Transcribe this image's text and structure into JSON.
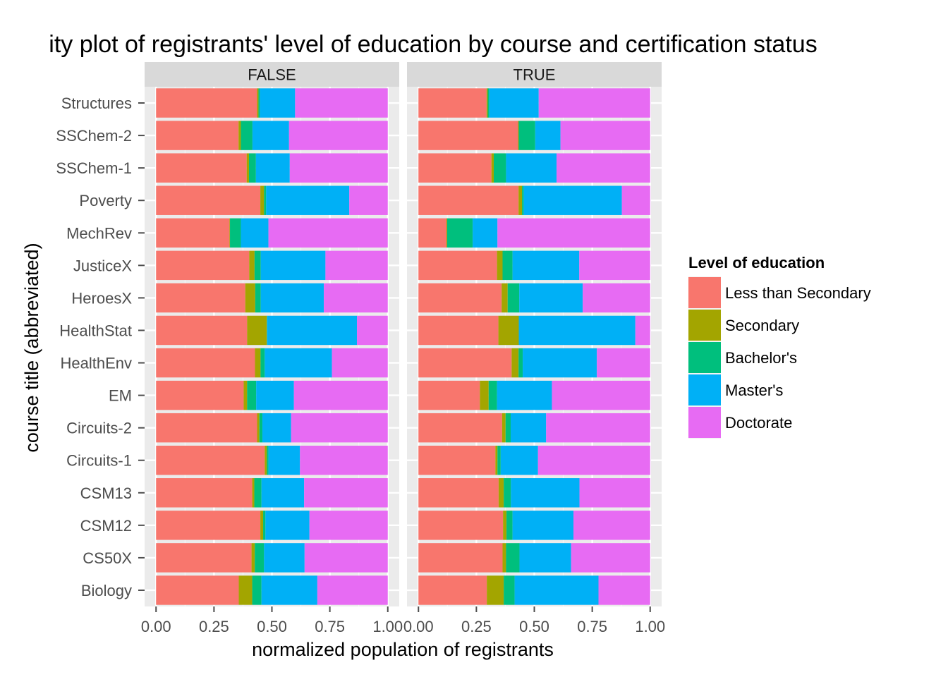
{
  "chart_data": {
    "type": "bar",
    "orientation": "horizontal",
    "stacked": true,
    "title": "ity plot of registrants' level of education by course and certification status",
    "xlabel": "normalized population of registrants",
    "ylabel": "course title (abbreviated)",
    "xlim": [
      0,
      1
    ],
    "xticks": [
      "0.00",
      "0.25",
      "0.50",
      "0.75",
      "1.00"
    ],
    "grid": true,
    "legend": {
      "position": "right",
      "title": "Level of education",
      "entries": [
        "Less than Secondary",
        "Secondary",
        "Bachelor's",
        "Master's",
        "Doctorate"
      ]
    },
    "colors": {
      "Less than Secondary": "#F8766D",
      "Secondary": "#A3A500",
      "Bachelor's": "#00BF7D",
      "Master's": "#00B0F6",
      "Doctorate": "#E76BF3"
    },
    "categories": [
      "Structures",
      "SSChem-2",
      "SSChem-1",
      "Poverty",
      "MechRev",
      "JusticeX",
      "HeroesX",
      "HealthStat",
      "HealthEnv",
      "EM",
      "Circuits-2",
      "Circuits-1",
      "CSM13",
      "CSM12",
      "CS50X",
      "Biology"
    ],
    "panels": [
      {
        "label": "FALSE",
        "series": [
          {
            "name": "Less than Secondary",
            "values": [
              0.436,
              0.356,
              0.391,
              0.45,
              0.317,
              0.402,
              0.385,
              0.393,
              0.427,
              0.378,
              0.436,
              0.469,
              0.415,
              0.45,
              0.412,
              0.357
            ]
          },
          {
            "name": "Secondary",
            "values": [
              0.006,
              0.01,
              0.01,
              0.016,
              0.002,
              0.023,
              0.043,
              0.085,
              0.024,
              0.015,
              0.01,
              0.009,
              0.009,
              0.012,
              0.014,
              0.058
            ]
          },
          {
            "name": "Bachelor's",
            "values": [
              0.006,
              0.05,
              0.03,
              0.009,
              0.047,
              0.027,
              0.024,
              0.001,
              0.018,
              0.039,
              0.013,
              0.007,
              0.031,
              0.01,
              0.04,
              0.04
            ]
          },
          {
            "name": "Master's",
            "values": [
              0.152,
              0.158,
              0.146,
              0.359,
              0.119,
              0.279,
              0.272,
              0.388,
              0.29,
              0.163,
              0.124,
              0.136,
              0.184,
              0.19,
              0.175,
              0.241
            ]
          },
          {
            "name": "Doctorate",
            "values": [
              0.4,
              0.426,
              0.423,
              0.166,
              0.515,
              0.269,
              0.276,
              0.133,
              0.241,
              0.405,
              0.417,
              0.379,
              0.361,
              0.338,
              0.359,
              0.304
            ]
          }
        ]
      },
      {
        "label": "TRUE",
        "series": [
          {
            "name": "Less than Secondary",
            "values": [
              0.294,
              0.43,
              0.315,
              0.432,
              0.121,
              0.339,
              0.359,
              0.345,
              0.402,
              0.265,
              0.361,
              0.332,
              0.346,
              0.365,
              0.363,
              0.295
            ]
          },
          {
            "name": "Secondary",
            "values": [
              0.005,
              0.003,
              0.01,
              0.015,
              0.003,
              0.024,
              0.026,
              0.088,
              0.03,
              0.038,
              0.015,
              0.009,
              0.022,
              0.015,
              0.015,
              0.073
            ]
          },
          {
            "name": "Bachelor's",
            "values": [
              0.007,
              0.071,
              0.053,
              0.007,
              0.11,
              0.043,
              0.05,
              0.0,
              0.018,
              0.036,
              0.022,
              0.014,
              0.031,
              0.026,
              0.058,
              0.047
            ]
          },
          {
            "name": "Master's",
            "values": [
              0.213,
              0.109,
              0.218,
              0.424,
              0.107,
              0.288,
              0.274,
              0.503,
              0.32,
              0.237,
              0.153,
              0.161,
              0.296,
              0.263,
              0.223,
              0.362
            ]
          },
          {
            "name": "Doctorate",
            "values": [
              0.481,
              0.387,
              0.404,
              0.122,
              0.659,
              0.306,
              0.291,
              0.064,
              0.23,
              0.424,
              0.449,
              0.484,
              0.305,
              0.331,
              0.341,
              0.223
            ]
          }
        ]
      }
    ]
  }
}
